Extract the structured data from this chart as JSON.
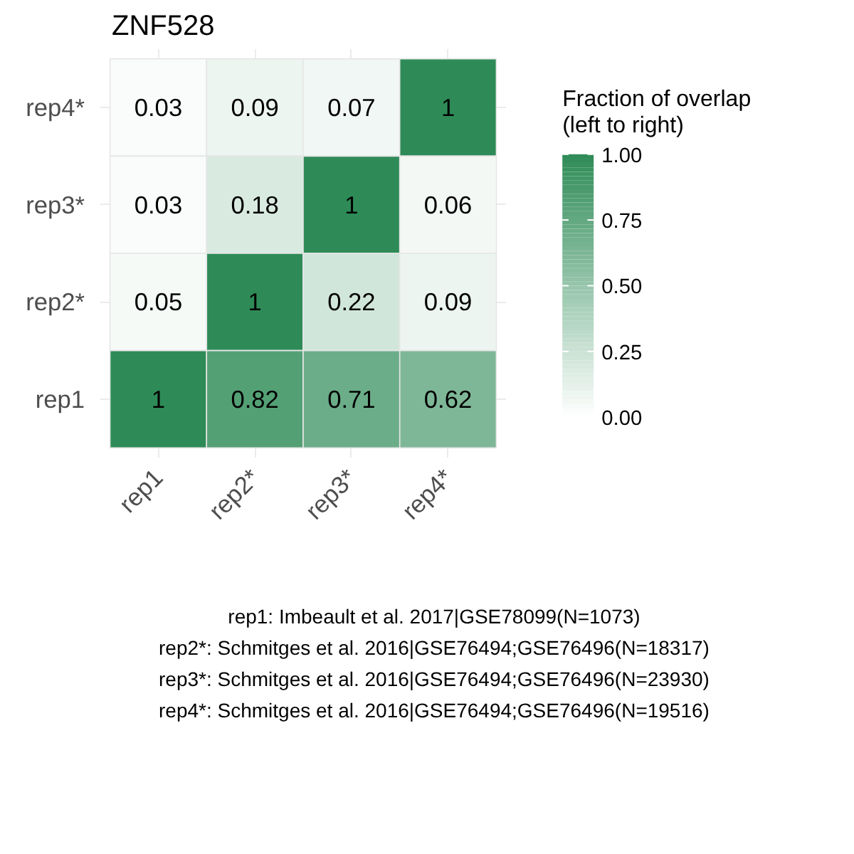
{
  "chart_data": {
    "type": "heatmap",
    "title": "ZNF528",
    "clabel": "Fraction of overlap\n(left to right)",
    "categories": [
      "rep1",
      "rep2*",
      "rep3*",
      "rep4*"
    ],
    "y_categories": [
      "rep4*",
      "rep3*",
      "rep2*",
      "rep1"
    ],
    "cells": [
      [
        0.03,
        0.09,
        0.07,
        1
      ],
      [
        0.03,
        0.18,
        1,
        0.06
      ],
      [
        0.05,
        1,
        0.22,
        0.09
      ],
      [
        1,
        0.82,
        0.71,
        0.62
      ]
    ],
    "data_labels": true,
    "color": "#2e8b57",
    "clim": [
      0,
      1
    ],
    "cticks": [
      {
        "value": 0,
        "label": "0.00"
      },
      {
        "value": 0.25,
        "label": "0.25"
      },
      {
        "value": 0.5,
        "label": "0.50"
      },
      {
        "value": 0.75,
        "label": "0.75"
      },
      {
        "value": 1,
        "label": "1.00"
      }
    ],
    "grid": true,
    "annotations": [
      "rep1: Imbeault et al. 2017|GSE78099(N=1073)",
      "rep2*: Schmitges et al. 2016|GSE76494;GSE76496(N=18317)",
      "rep3*: Schmitges et al. 2016|GSE76494;GSE76496(N=23930)",
      "rep4*: Schmitges et al. 2016|GSE76494;GSE76496(N=19516)"
    ]
  }
}
